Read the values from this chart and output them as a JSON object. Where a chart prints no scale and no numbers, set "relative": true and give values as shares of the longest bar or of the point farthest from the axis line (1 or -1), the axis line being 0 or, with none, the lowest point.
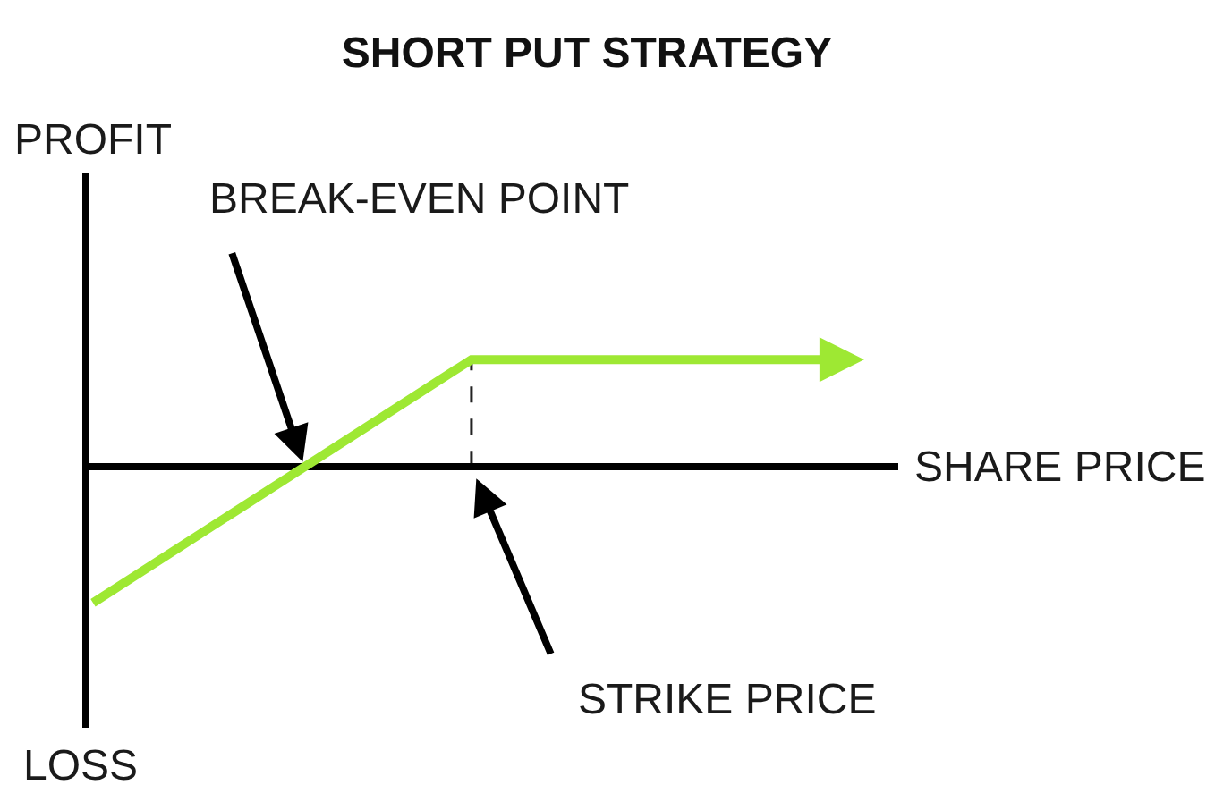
{
  "chart_data": {
    "type": "line",
    "title": "SHORT PUT STRATEGY",
    "xlabel": "SHARE PRICE",
    "ylabel": "PROFIT",
    "annotations": [
      "LOSS",
      "BREAK-EVEN POINT",
      "STRIKE PRICE"
    ],
    "categories": [
      null,
      null,
      null
    ],
    "relative": true,
    "series": [
      {
        "color": "#9ee833",
        "values": [
          -1,
          0.79,
          0.79
        ]
      }
    ],
    "grid": false,
    "marker": "none",
    "line_style": "solid"
  }
}
